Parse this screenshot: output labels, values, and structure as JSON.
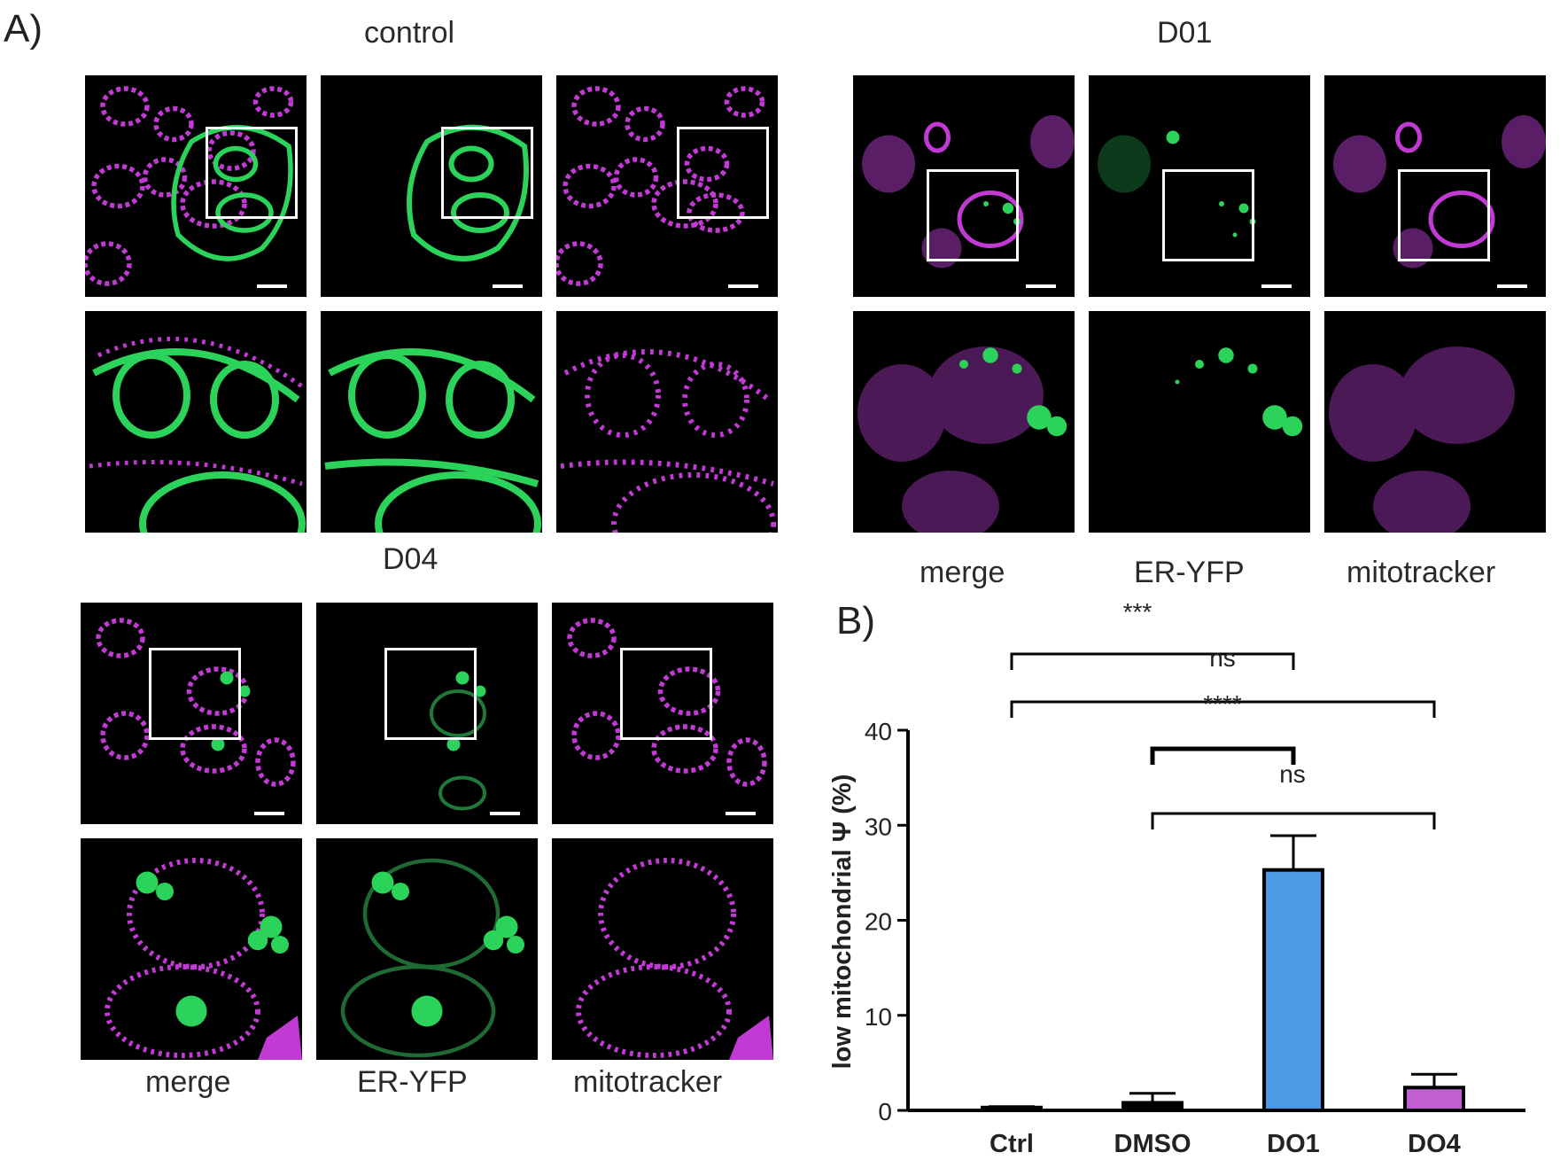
{
  "panel_a": {
    "letter": "A)",
    "groups": {
      "control": {
        "title": "control"
      },
      "d01": {
        "title": "D01"
      },
      "d04": {
        "title": "D04"
      }
    },
    "columns": [
      "merge",
      "ER-YFP",
      "mitotracker"
    ]
  },
  "panel_b": {
    "letter": "B)"
  },
  "colors": {
    "green": "#2bd35a",
    "magenta": "#c23ad4",
    "d01_bar": "#4a9ae6",
    "d04_bar": "#c060d0"
  },
  "chart_data": {
    "type": "bar",
    "categories": [
      "Ctrl",
      "DMSO",
      "DO1",
      "DO4"
    ],
    "values": [
      0.3,
      0.8,
      25.3,
      2.4
    ],
    "errors": [
      0.1,
      1.0,
      3.6,
      1.4
    ],
    "bar_colors": [
      "#000000",
      "#000000",
      "#4a9ae6",
      "#c060d0"
    ],
    "ylabel": "low mitochondrial Ψ (%)",
    "ylim": [
      0,
      40
    ],
    "yticks": [
      0,
      10,
      20,
      30,
      40
    ],
    "grid": false,
    "significance": [
      {
        "from": 0,
        "to": 2,
        "label": "***"
      },
      {
        "from": 0,
        "to": 2,
        "label": "ns"
      },
      {
        "from": 0,
        "to": 3,
        "label": "****"
      },
      {
        "from": 1,
        "to": 2,
        "label": ""
      },
      {
        "from": 1,
        "to": 3,
        "label": "ns"
      }
    ]
  }
}
